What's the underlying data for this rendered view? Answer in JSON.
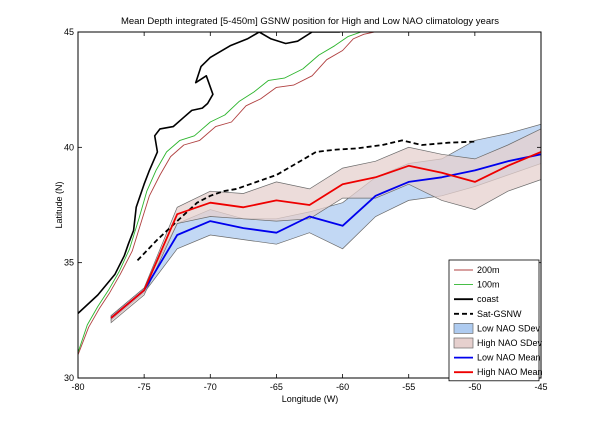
{
  "chart_data": {
    "type": "line",
    "title": "Mean Depth integrated [5-450m] GSNW position for High and Low NAO climatology years",
    "xlabel": "Longitude (W)",
    "ylabel": "Latitude (N)",
    "xlim": [
      -80,
      -45
    ],
    "ylim": [
      30,
      45
    ],
    "grid": false,
    "legend_position": "bottom-right",
    "x_ticks": [
      -80,
      -75,
      -70,
      -65,
      -60,
      -55,
      -50,
      -45
    ],
    "y_ticks": [
      30,
      35,
      40,
      45
    ],
    "x_tick_labels": [
      "-80",
      "-75",
      "-70",
      "-65",
      "-60",
      "-55",
      "-50",
      "-45"
    ],
    "y_tick_labels": [
      "30",
      "35",
      "40",
      "45"
    ],
    "bands": [
      {
        "name": "Low NAO SDev",
        "fill": "#aecbf0",
        "edge": "#6b6b6b",
        "x": [
          -77.5,
          -75,
          -72.5,
          -70,
          -67.5,
          -65,
          -62.5,
          -60,
          -57.5,
          -55,
          -52.5,
          -50,
          -47.5,
          -45
        ],
        "upper": [
          32.7,
          33.9,
          36.7,
          37.3,
          36.9,
          36.9,
          37.2,
          37.6,
          38.7,
          39.3,
          39.5,
          40.3,
          40.6,
          41.0
        ],
        "lower": [
          32.5,
          33.7,
          35.6,
          36.2,
          36.0,
          35.8,
          36.3,
          35.6,
          37.0,
          37.7,
          37.9,
          38.3,
          38.8,
          39.3
        ]
      },
      {
        "name": "High NAO SDev",
        "fill": "#e6d0ce",
        "edge": "#6b6b6b",
        "x": [
          -77.5,
          -75,
          -72.5,
          -70,
          -67.5,
          -65,
          -62.5,
          -60,
          -57.5,
          -55,
          -52.5,
          -50,
          -47.5,
          -45
        ],
        "upper": [
          32.7,
          33.9,
          37.4,
          38.1,
          38.0,
          38.5,
          38.2,
          39.1,
          39.4,
          40.0,
          39.7,
          39.5,
          40.1,
          40.8
        ],
        "lower": [
          32.4,
          33.6,
          36.7,
          37.0,
          36.9,
          36.8,
          36.9,
          37.8,
          37.8,
          38.4,
          37.7,
          37.3,
          38.1,
          38.6
        ]
      }
    ],
    "series": [
      {
        "name": "Sat-GSNW",
        "color": "#000000",
        "style": "dashed",
        "x": [
          -75.5,
          -74,
          -72.5,
          -71,
          -70,
          -69,
          -68,
          -66.5,
          -65,
          -63.5,
          -62,
          -60.5,
          -59,
          -57,
          -55.5,
          -54,
          -52,
          -50
        ],
        "y": [
          35.1,
          36.0,
          36.8,
          37.6,
          37.9,
          38.1,
          38.2,
          38.5,
          38.8,
          39.3,
          39.8,
          39.9,
          39.95,
          40.1,
          40.3,
          40.1,
          40.2,
          40.25
        ]
      },
      {
        "name": "Low NAO Mean",
        "color": "#0000ee",
        "style": "solid",
        "x": [
          -77.5,
          -75,
          -72.5,
          -70,
          -67.5,
          -65,
          -62.5,
          -60,
          -57.5,
          -55,
          -52.5,
          -50,
          -47.5,
          -45
        ],
        "y": [
          32.6,
          33.8,
          36.2,
          36.8,
          36.5,
          36.3,
          37.0,
          36.6,
          37.9,
          38.5,
          38.7,
          39.0,
          39.4,
          39.7
        ]
      },
      {
        "name": "High NAO Mean",
        "color": "#ee0000",
        "style": "solid",
        "x": [
          -77.5,
          -75,
          -72.5,
          -70,
          -67.5,
          -65,
          -62.5,
          -60,
          -57.5,
          -55,
          -52.5,
          -50,
          -47.5,
          -45
        ],
        "y": [
          32.6,
          33.8,
          37.1,
          37.6,
          37.4,
          37.7,
          37.5,
          38.4,
          38.7,
          39.2,
          38.9,
          38.5,
          39.2,
          39.8
        ]
      },
      {
        "name": "coast",
        "color": "#000000",
        "style": "solid-thick",
        "x": [
          -80,
          -78.5,
          -77.2,
          -76.5,
          -76.2,
          -75.8,
          -75.6,
          -75.0,
          -74.6,
          -74.0,
          -74.2,
          -73.8,
          -72.8,
          -72.0,
          -71.4,
          -70.6,
          -70.2,
          -69.8,
          -70.3,
          -71.1,
          -70.7,
          -70.0,
          -68.5,
          -67.2,
          -66.3,
          -65.4,
          -64.3,
          -63.4,
          -62.3,
          -61.5,
          -60.8,
          -60.2
        ],
        "y": [
          32.8,
          33.6,
          34.5,
          35.3,
          35.8,
          36.4,
          37.4,
          38.4,
          39.0,
          39.8,
          40.5,
          40.8,
          40.9,
          41.3,
          41.6,
          41.7,
          41.9,
          42.3,
          43.1,
          42.8,
          43.5,
          43.9,
          44.4,
          44.7,
          45.0,
          44.7,
          44.5,
          44.6,
          45.0,
          45.0,
          45.0,
          45.0
        ]
      },
      {
        "name": "200m",
        "color": "#b04040",
        "style": "solid",
        "x": [
          -80,
          -79.2,
          -78.4,
          -77.6,
          -76.8,
          -75.9,
          -75.2,
          -74.6,
          -73.8,
          -73.0,
          -72.0,
          -70.8,
          -69.6,
          -68.4,
          -67.3,
          -66.2,
          -65.0,
          -63.7,
          -62.3,
          -61.2,
          -60.0,
          -59.2,
          -58.4,
          -57.6
        ],
        "y": [
          31.0,
          32.2,
          33.0,
          33.7,
          34.5,
          35.5,
          36.8,
          37.9,
          38.8,
          39.6,
          40.1,
          40.3,
          40.9,
          41.1,
          41.8,
          42.1,
          42.6,
          42.7,
          43.1,
          43.8,
          44.2,
          44.7,
          44.9,
          45.0
        ]
      },
      {
        "name": "100m",
        "color": "#2db52d",
        "style": "solid",
        "x": [
          -80,
          -79.3,
          -78.5,
          -77.7,
          -76.9,
          -76.1,
          -75.4,
          -74.8,
          -74.1,
          -73.3,
          -72.3,
          -71.2,
          -70.0,
          -68.9,
          -67.8,
          -66.7,
          -65.6,
          -64.4,
          -63.0,
          -61.8,
          -60.6,
          -59.6,
          -58.6,
          -57.6
        ],
        "y": [
          31.1,
          32.3,
          33.1,
          33.8,
          34.6,
          35.6,
          36.9,
          38.1,
          39.0,
          39.8,
          40.3,
          40.5,
          41.1,
          41.4,
          42.0,
          42.4,
          42.9,
          43.0,
          43.4,
          44.0,
          44.4,
          44.8,
          45.0,
          45.0
        ]
      }
    ],
    "legend": [
      {
        "label": "200m",
        "kind": "line",
        "color": "#b04040"
      },
      {
        "label": "100m",
        "kind": "line",
        "color": "#2db52d"
      },
      {
        "label": "coast",
        "kind": "line-thick",
        "color": "#000000"
      },
      {
        "label": "Sat-GSNW",
        "kind": "dashed",
        "color": "#000000"
      },
      {
        "label": "Low NAO SDev",
        "kind": "patch",
        "color": "#aecbf0"
      },
      {
        "label": "High NAO SDev",
        "kind": "patch",
        "color": "#e6d0ce"
      },
      {
        "label": "Low NAO Mean",
        "kind": "line-thick",
        "color": "#0000ee"
      },
      {
        "label": "High NAO Mean",
        "kind": "line-thick",
        "color": "#ee0000"
      }
    ]
  }
}
